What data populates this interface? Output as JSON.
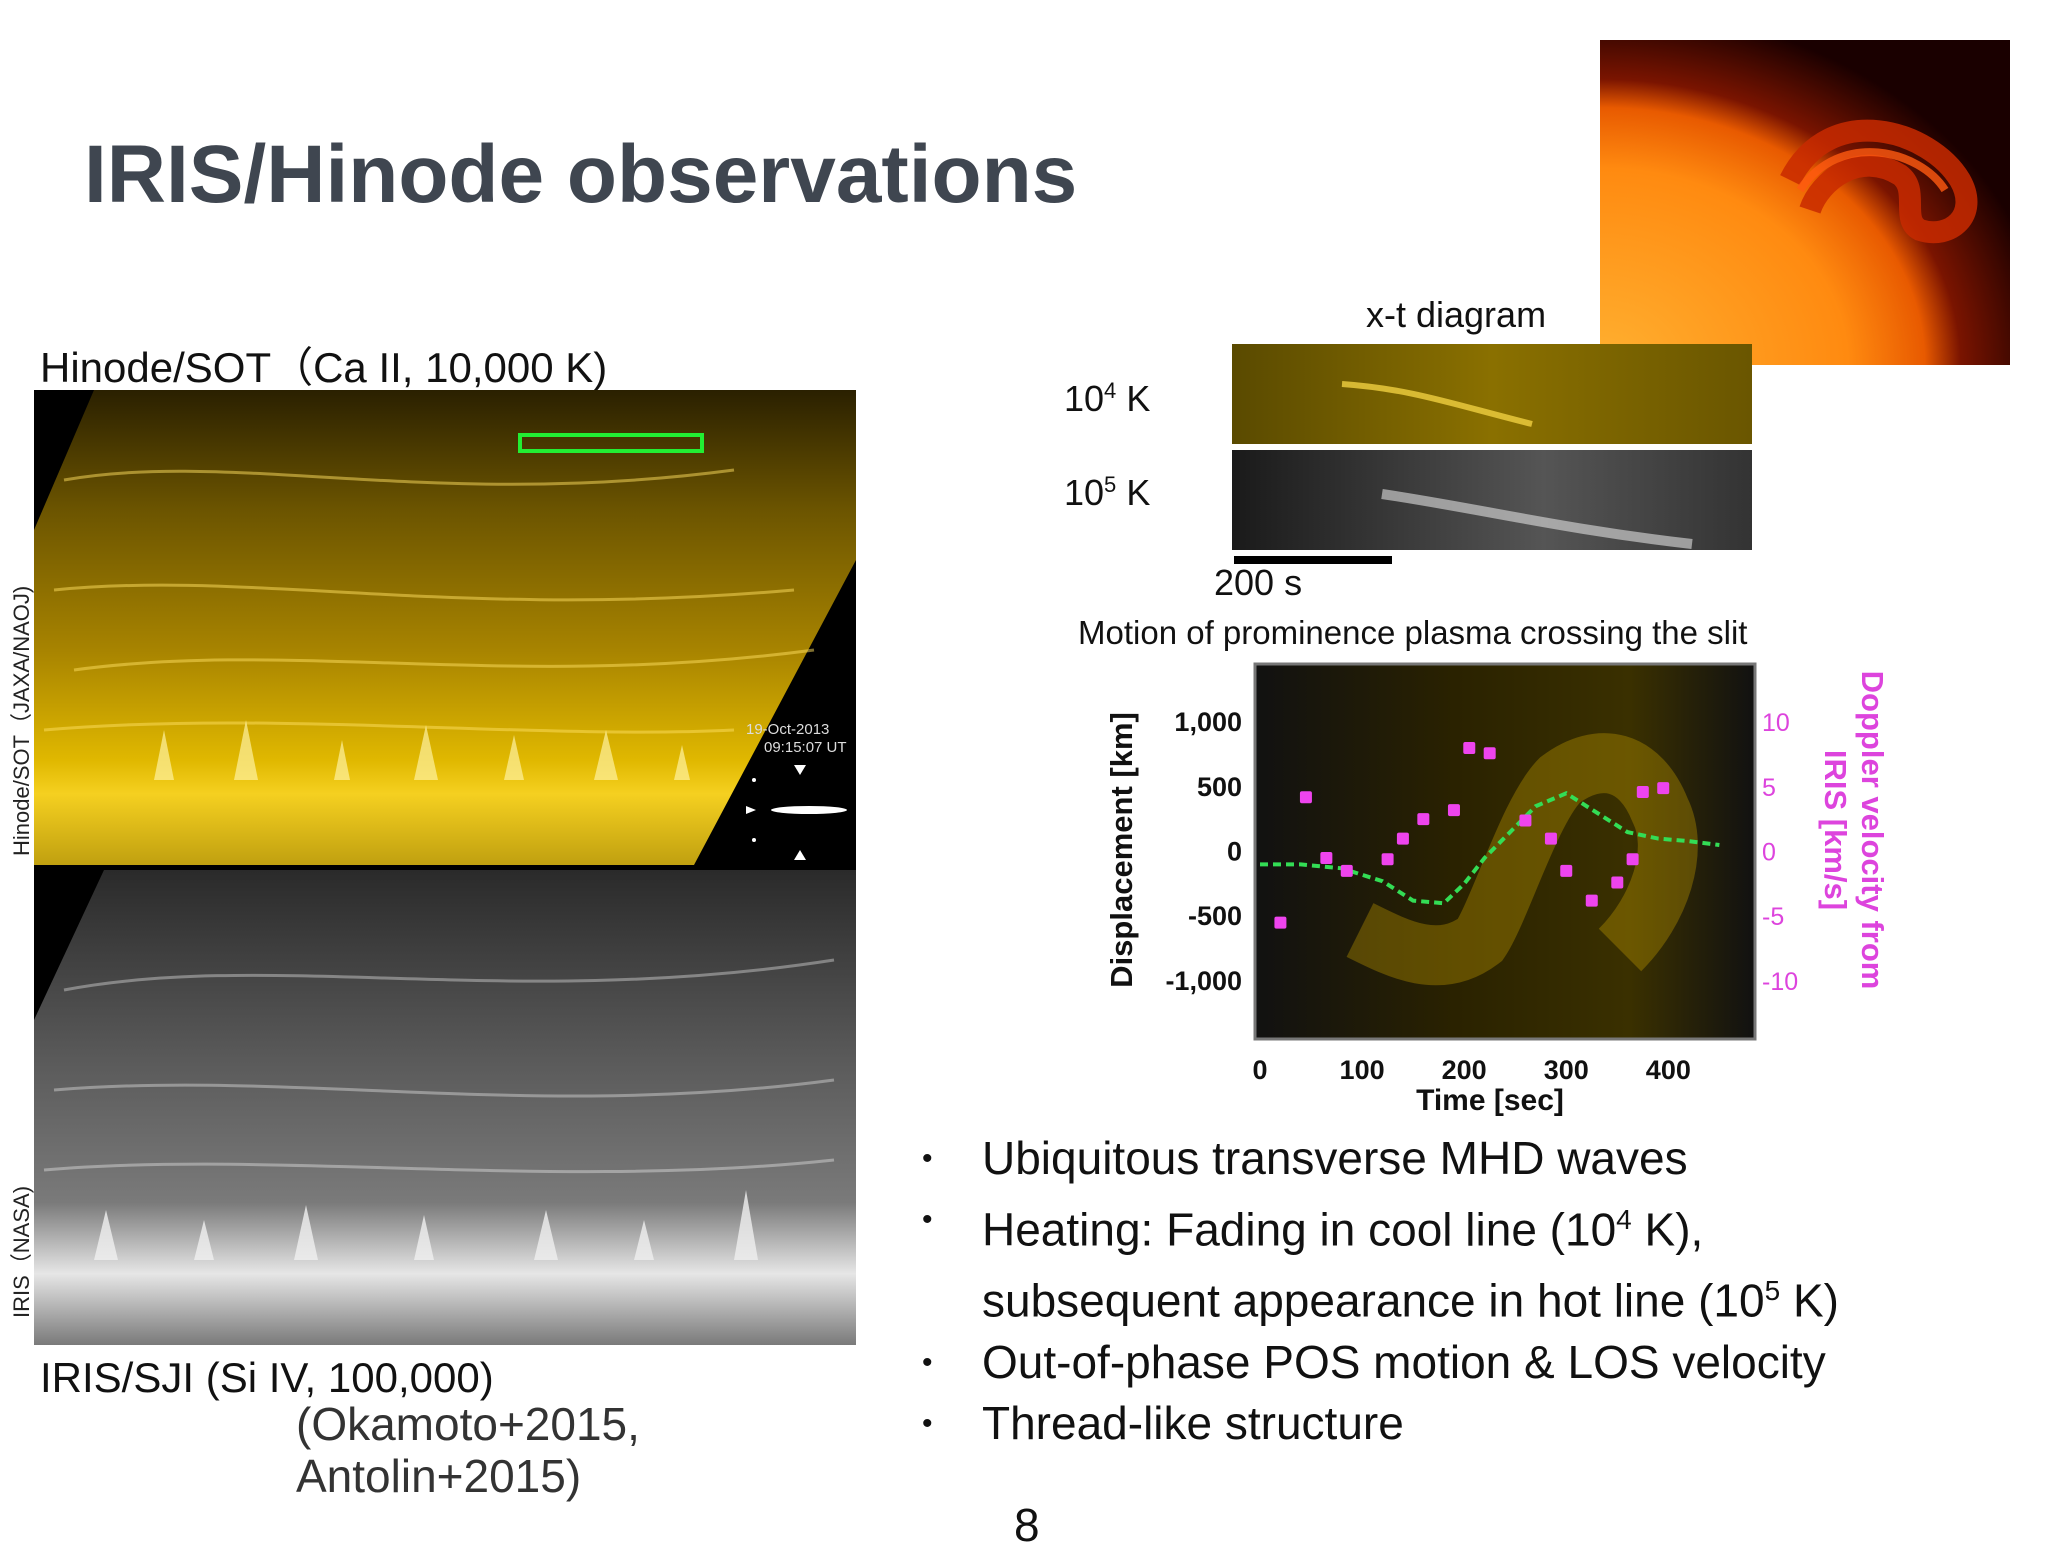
{
  "slide": {
    "title": "IRIS/Hinode observations",
    "page_number": "8"
  },
  "left_panel": {
    "sot_label": "Hinode/SOT（Ca II, 10,000 K)",
    "iris_label": "IRIS/SJI (Si IV, 100,000)",
    "credit_sot": "Hinode/SOT（JAXA/NAOJ)",
    "credit_iris": "IRIS（NASA)",
    "timestamp_date": "19-Oct-2013",
    "timestamp_time": "09:15:07 UT",
    "reference_line1": "(Okamoto+2015,",
    "reference_line2": "Antolin+2015)"
  },
  "xt_diagram": {
    "title": "x-t diagram",
    "row1_label": "10",
    "row1_exp": "4",
    "row2_label": "10",
    "row2_exp": "5",
    "unit": "K",
    "scale_bar_label": "200 s",
    "caption": "Motion of prominence plasma crossing the slit"
  },
  "chart_data": {
    "type": "scatter",
    "title": "",
    "xlabel": "Time [sec]",
    "ylabel": "Displacement [km]",
    "y2label_line1": "Doppler velocity from",
    "y2label_line2": "IRIS [km/s]",
    "x_ticks": [
      "0",
      "100",
      "200",
      "300",
      "400"
    ],
    "y_ticks": [
      "1,000",
      "500",
      "0",
      "-500",
      "-1,000"
    ],
    "y2_ticks": [
      "10",
      "5",
      "0",
      "-5",
      "-10"
    ],
    "xlim": [
      0,
      480
    ],
    "ylim": [
      -1450,
      1450
    ],
    "y2lim": [
      -14.5,
      14.5
    ],
    "colors": {
      "displacement": "#33dd55",
      "doppler": "#ee44ee",
      "y2_axis": "#dd44dd"
    },
    "series": [
      {
        "name": "displacement",
        "x": [
          0,
          40,
          80,
          120,
          150,
          180,
          200,
          220,
          245,
          270,
          300,
          330,
          360,
          390,
          420,
          450
        ],
        "y": [
          -100,
          -100,
          -130,
          -230,
          -380,
          -400,
          -250,
          -50,
          150,
          350,
          450,
          300,
          150,
          100,
          80,
          50
        ]
      },
      {
        "name": "doppler",
        "x": [
          20,
          45,
          65,
          85,
          125,
          140,
          160,
          190,
          205,
          225,
          260,
          285,
          300,
          325,
          350,
          365,
          375,
          395
        ],
        "y": [
          -5.5,
          4.2,
          -0.5,
          -1.5,
          -0.6,
          1.0,
          2.5,
          3.2,
          8.0,
          7.6,
          2.4,
          1.0,
          -1.5,
          -3.8,
          -2.4,
          -0.6,
          4.6,
          4.9
        ]
      }
    ]
  },
  "bullets": {
    "b1": "Ubiquitous transverse MHD waves",
    "b2_pre": "Heating: Fading in cool line (10",
    "b2_exp": "4",
    "b2_post": " K),",
    "b2_cont_pre": "subsequent appearance in hot line (10",
    "b2_cont_exp": "5",
    "b2_cont_post": " K)",
    "b3": "Out-of-phase POS motion & LOS velocity",
    "b4": "Thread-like structure",
    "bullet_glyph": "•"
  }
}
